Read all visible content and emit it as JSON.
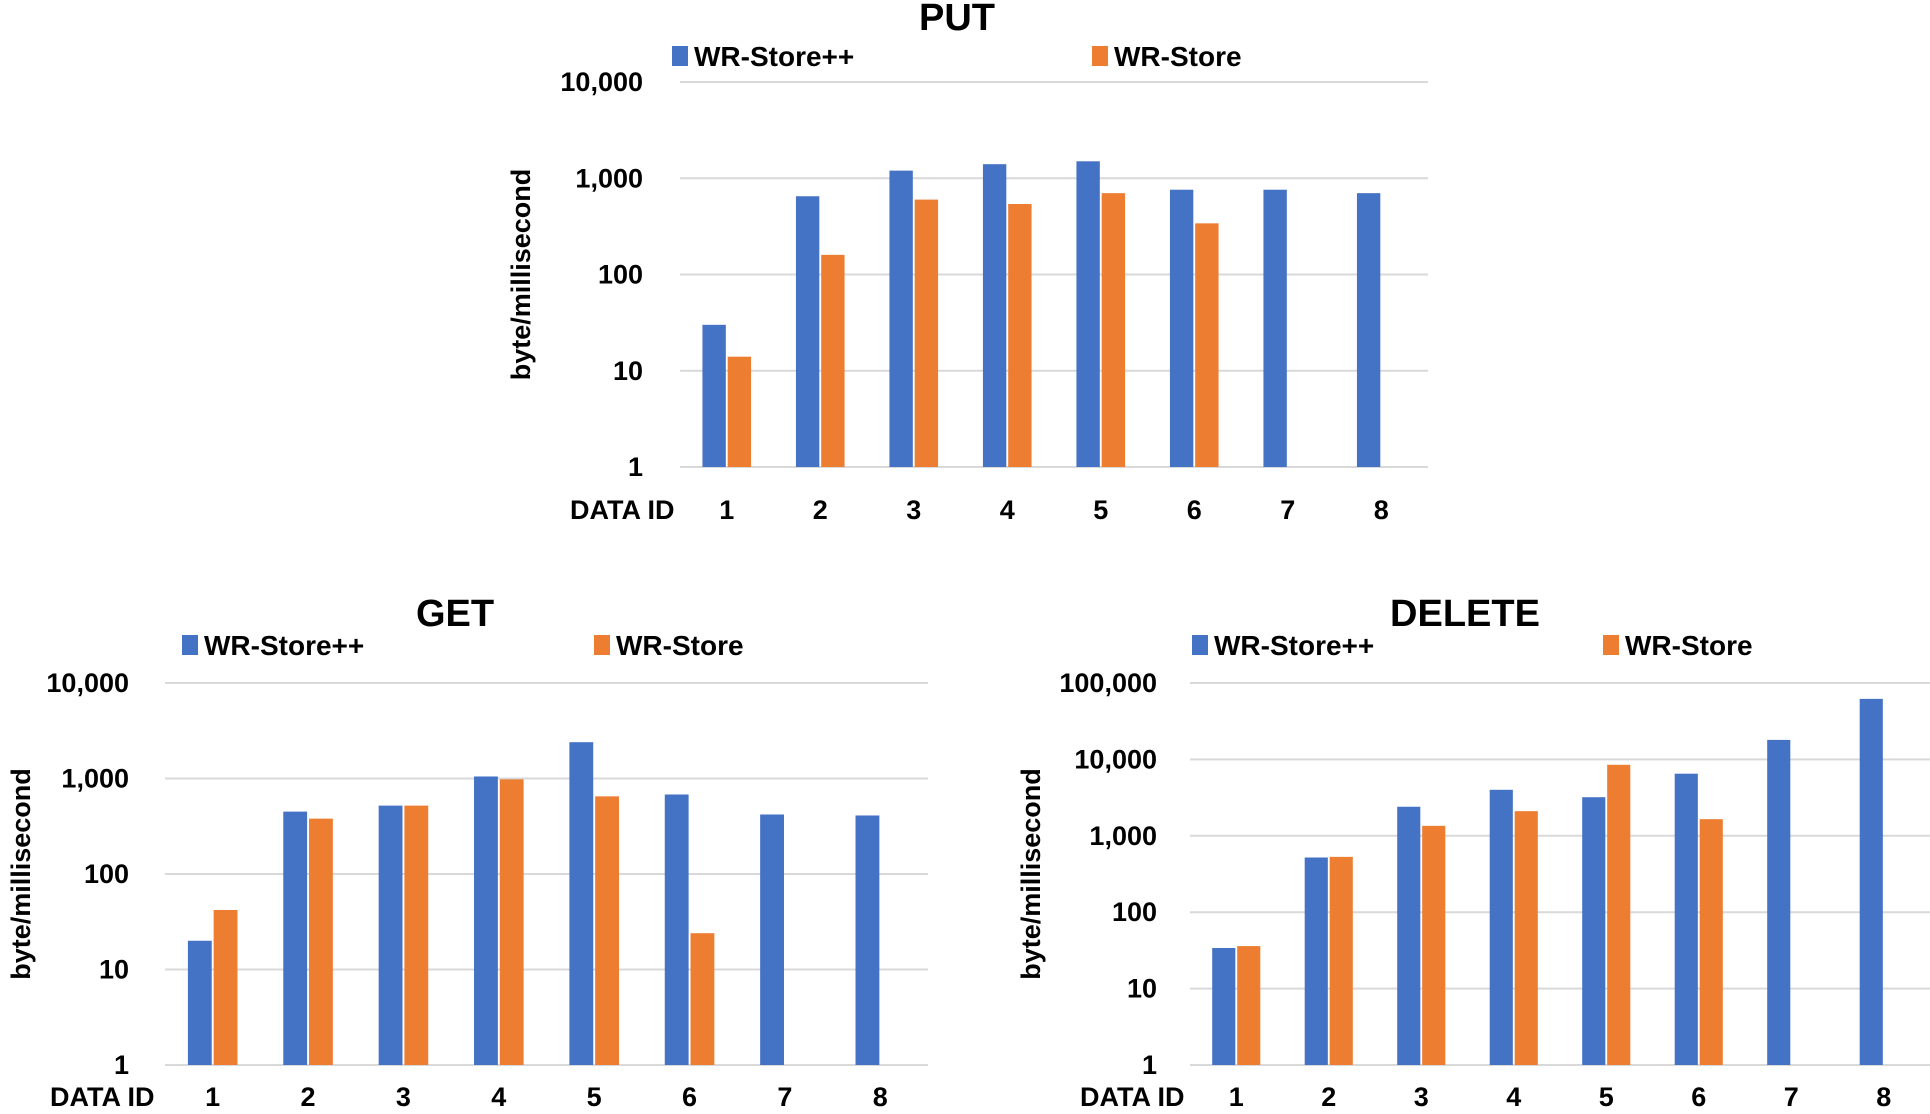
{
  "chart_data": [
    {
      "type": "bar",
      "title": "PUT",
      "xlabel": "DATA ID",
      "ylabel": "byte/millisecond",
      "scale": "log10",
      "ylim": [
        1,
        10000
      ],
      "ytick_labels": [
        "1",
        "10",
        "100",
        "1,000",
        "10,000"
      ],
      "categories": [
        "1",
        "2",
        "3",
        "4",
        "5",
        "6",
        "7",
        "8"
      ],
      "series": [
        {
          "name": "WR-Store++",
          "color": "#4472c4",
          "values": [
            30,
            650,
            1200,
            1400,
            1500,
            760,
            760,
            700
          ]
        },
        {
          "name": "WR-Store",
          "color": "#ed7d31",
          "values": [
            14,
            160,
            600,
            540,
            700,
            340,
            null,
            null
          ]
        }
      ]
    },
    {
      "type": "bar",
      "title": "GET",
      "xlabel": "DATA ID",
      "ylabel": "byte/millisecond",
      "scale": "log10",
      "ylim": [
        1,
        10000
      ],
      "ytick_labels": [
        "1",
        "10",
        "100",
        "1,000",
        "10,000"
      ],
      "categories": [
        "1",
        "2",
        "3",
        "4",
        "5",
        "6",
        "7",
        "8"
      ],
      "series": [
        {
          "name": "WR-Store++",
          "color": "#4472c4",
          "values": [
            20,
            450,
            520,
            1050,
            2400,
            680,
            420,
            410
          ]
        },
        {
          "name": "WR-Store",
          "color": "#ed7d31",
          "values": [
            42,
            380,
            520,
            980,
            650,
            24,
            null,
            null
          ]
        }
      ]
    },
    {
      "type": "bar",
      "title": "DELETE",
      "xlabel": "DATA ID",
      "ylabel": "byte/millisecond",
      "scale": "log10",
      "ylim": [
        1,
        100000
      ],
      "ytick_labels": [
        "1",
        "10",
        "100",
        "1,000",
        "10,000",
        "100,000"
      ],
      "categories": [
        "1",
        "2",
        "3",
        "4",
        "5",
        "6",
        "7",
        "8"
      ],
      "series": [
        {
          "name": "WR-Store++",
          "color": "#4472c4",
          "values": [
            34,
            520,
            2400,
            4000,
            3200,
            6500,
            18000,
            62000
          ]
        },
        {
          "name": "WR-Store",
          "color": "#ed7d31",
          "values": [
            36,
            530,
            1350,
            2100,
            8500,
            1650,
            null,
            null
          ]
        }
      ]
    }
  ]
}
